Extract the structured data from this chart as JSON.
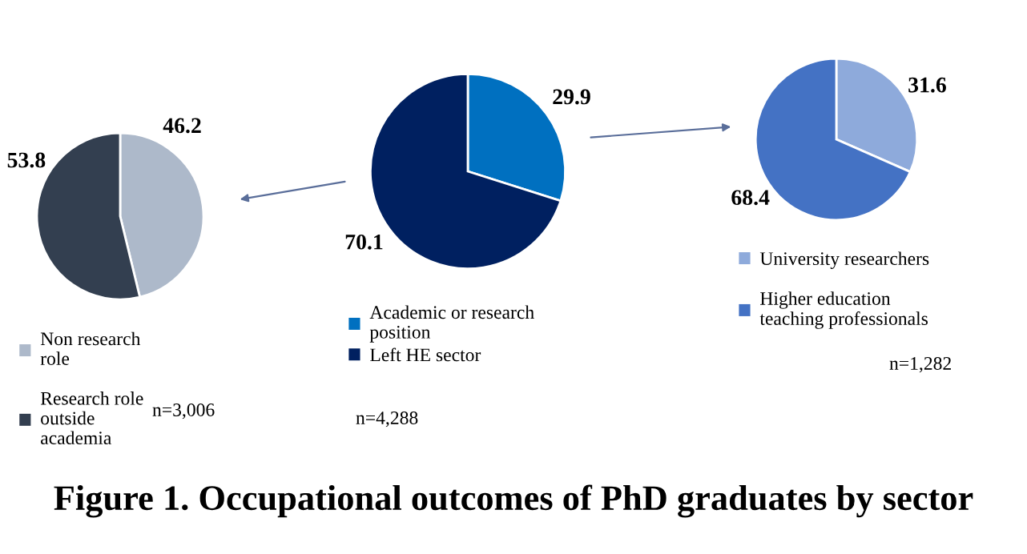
{
  "chart_data": [
    {
      "type": "pie",
      "categories": [
        "Non research\nrole",
        "Research role\noutside\nacademia"
      ],
      "values": [
        46.2,
        53.8
      ],
      "colors": [
        "#adb9ca",
        "#333f50"
      ],
      "data_labels": true,
      "legend": "bottom",
      "annotations": [
        "n=3,006"
      ]
    },
    {
      "type": "pie",
      "title": "Figure 1. Occupational outcomes of PhD graduates by sector",
      "categories": [
        "Academic or research\nposition",
        "Left HE sector"
      ],
      "values": [
        29.9,
        70.1
      ],
      "colors": [
        "#0070c0",
        "#002060"
      ],
      "data_labels": true,
      "legend": "bottom",
      "annotations": [
        "n=4,288"
      ]
    },
    {
      "type": "pie",
      "categories": [
        "University researchers",
        "Higher education\nteaching professionals"
      ],
      "values": [
        31.6,
        68.4
      ],
      "colors": [
        "#8eaadb",
        "#4472c4"
      ],
      "data_labels": true,
      "legend": "bottom",
      "annotations": [
        "n=1,282"
      ]
    }
  ]
}
